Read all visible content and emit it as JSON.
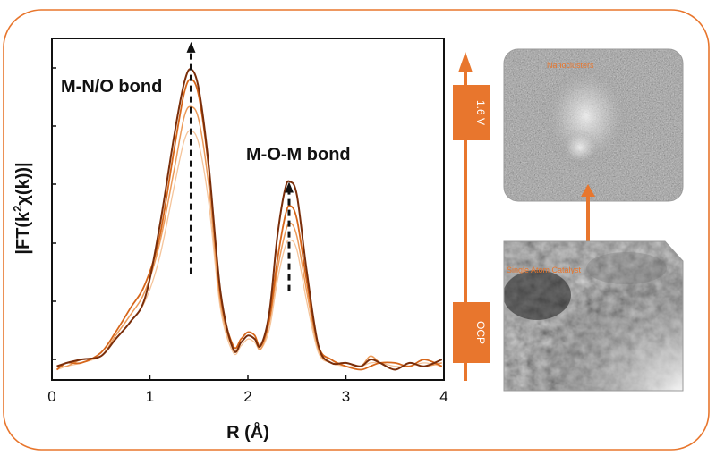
{
  "chart_data": {
    "type": "line",
    "xlabel": "R (Å)",
    "ylabel": "|FT(k²χ(k))|",
    "ylabel_parts": {
      "prefix": "FT(k",
      "sup": "2",
      "suffix": "χ(k))"
    },
    "xlim": [
      0,
      4
    ],
    "ylim": [
      0,
      1
    ],
    "xticks": [
      "0",
      "1",
      "2",
      "3",
      "4"
    ],
    "grid": false,
    "legend": "none",
    "annotations": [
      {
        "text": "M-N/O bond",
        "x": 1.42,
        "y_start": 0.31,
        "y_end": 0.99
      },
      {
        "text": "M-O-M bond",
        "x": 2.42,
        "y_start": 0.26,
        "y_end": 0.58
      }
    ],
    "series": [
      {
        "color": "#7a2e0a",
        "width": 2.0,
        "opacity": 1.0,
        "points": [
          [
            0.05,
            0.04
          ],
          [
            0.15,
            0.05
          ],
          [
            0.3,
            0.06
          ],
          [
            0.5,
            0.07
          ],
          [
            0.65,
            0.12
          ],
          [
            0.8,
            0.17
          ],
          [
            0.95,
            0.24
          ],
          [
            1.1,
            0.45
          ],
          [
            1.25,
            0.72
          ],
          [
            1.35,
            0.87
          ],
          [
            1.42,
            0.91
          ],
          [
            1.5,
            0.85
          ],
          [
            1.6,
            0.63
          ],
          [
            1.72,
            0.26
          ],
          [
            1.85,
            0.09
          ],
          [
            1.93,
            0.11
          ],
          [
            2.0,
            0.13
          ],
          [
            2.07,
            0.12
          ],
          [
            2.13,
            0.1
          ],
          [
            2.22,
            0.2
          ],
          [
            2.3,
            0.42
          ],
          [
            2.38,
            0.56
          ],
          [
            2.43,
            0.58
          ],
          [
            2.5,
            0.54
          ],
          [
            2.6,
            0.32
          ],
          [
            2.72,
            0.1
          ],
          [
            2.85,
            0.05
          ],
          [
            3.0,
            0.05
          ],
          [
            3.15,
            0.04
          ],
          [
            3.25,
            0.06
          ],
          [
            3.35,
            0.05
          ],
          [
            3.5,
            0.03
          ],
          [
            3.65,
            0.05
          ],
          [
            3.8,
            0.04
          ],
          [
            3.98,
            0.06
          ]
        ]
      },
      {
        "color": "#d6661a",
        "width": 1.8,
        "opacity": 1.0,
        "points": [
          [
            0.05,
            0.03
          ],
          [
            0.15,
            0.05
          ],
          [
            0.3,
            0.05
          ],
          [
            0.5,
            0.08
          ],
          [
            0.65,
            0.14
          ],
          [
            0.8,
            0.21
          ],
          [
            0.95,
            0.28
          ],
          [
            1.1,
            0.42
          ],
          [
            1.25,
            0.68
          ],
          [
            1.35,
            0.84
          ],
          [
            1.42,
            0.88
          ],
          [
            1.5,
            0.83
          ],
          [
            1.6,
            0.62
          ],
          [
            1.72,
            0.25
          ],
          [
            1.85,
            0.1
          ],
          [
            1.93,
            0.12
          ],
          [
            2.0,
            0.14
          ],
          [
            2.07,
            0.13
          ],
          [
            2.13,
            0.1
          ],
          [
            2.22,
            0.18
          ],
          [
            2.3,
            0.35
          ],
          [
            2.38,
            0.48
          ],
          [
            2.43,
            0.51
          ],
          [
            2.5,
            0.47
          ],
          [
            2.6,
            0.29
          ],
          [
            2.72,
            0.1
          ],
          [
            2.85,
            0.06
          ],
          [
            3.0,
            0.04
          ],
          [
            3.15,
            0.03
          ],
          [
            3.25,
            0.04
          ],
          [
            3.35,
            0.05
          ],
          [
            3.5,
            0.05
          ],
          [
            3.65,
            0.04
          ],
          [
            3.8,
            0.06
          ],
          [
            3.98,
            0.04
          ]
        ]
      },
      {
        "color": "#ec9a58",
        "width": 1.5,
        "opacity": 1.0,
        "points": [
          [
            0.05,
            0.04
          ],
          [
            0.15,
            0.04
          ],
          [
            0.3,
            0.06
          ],
          [
            0.5,
            0.07
          ],
          [
            0.65,
            0.13
          ],
          [
            0.8,
            0.19
          ],
          [
            0.95,
            0.26
          ],
          [
            1.1,
            0.4
          ],
          [
            1.25,
            0.62
          ],
          [
            1.35,
            0.77
          ],
          [
            1.42,
            0.8
          ],
          [
            1.5,
            0.76
          ],
          [
            1.6,
            0.57
          ],
          [
            1.72,
            0.23
          ],
          [
            1.85,
            0.09
          ],
          [
            1.93,
            0.11
          ],
          [
            2.0,
            0.13
          ],
          [
            2.07,
            0.12
          ],
          [
            2.13,
            0.09
          ],
          [
            2.22,
            0.17
          ],
          [
            2.3,
            0.32
          ],
          [
            2.38,
            0.43
          ],
          [
            2.43,
            0.46
          ],
          [
            2.5,
            0.42
          ],
          [
            2.6,
            0.26
          ],
          [
            2.72,
            0.09
          ],
          [
            2.85,
            0.05
          ],
          [
            3.0,
            0.05
          ],
          [
            3.15,
            0.04
          ],
          [
            3.25,
            0.07
          ],
          [
            3.35,
            0.05
          ],
          [
            3.5,
            0.03
          ],
          [
            3.65,
            0.05
          ],
          [
            3.8,
            0.04
          ],
          [
            3.98,
            0.05
          ]
        ]
      },
      {
        "color": "#f5c49a",
        "width": 1.3,
        "opacity": 1.0,
        "points": [
          [
            0.05,
            0.03
          ],
          [
            0.15,
            0.04
          ],
          [
            0.3,
            0.05
          ],
          [
            0.5,
            0.07
          ],
          [
            0.65,
            0.12
          ],
          [
            0.8,
            0.17
          ],
          [
            0.95,
            0.23
          ],
          [
            1.1,
            0.36
          ],
          [
            1.25,
            0.57
          ],
          [
            1.35,
            0.7
          ],
          [
            1.42,
            0.73
          ],
          [
            1.5,
            0.69
          ],
          [
            1.6,
            0.52
          ],
          [
            1.72,
            0.21
          ],
          [
            1.85,
            0.08
          ],
          [
            1.93,
            0.1
          ],
          [
            2.0,
            0.12
          ],
          [
            2.07,
            0.11
          ],
          [
            2.13,
            0.09
          ],
          [
            2.22,
            0.15
          ],
          [
            2.3,
            0.29
          ],
          [
            2.38,
            0.39
          ],
          [
            2.43,
            0.41
          ],
          [
            2.5,
            0.38
          ],
          [
            2.6,
            0.23
          ],
          [
            2.72,
            0.08
          ],
          [
            2.85,
            0.05
          ],
          [
            3.0,
            0.04
          ],
          [
            3.15,
            0.04
          ],
          [
            3.25,
            0.05
          ],
          [
            3.35,
            0.05
          ],
          [
            3.5,
            0.04
          ],
          [
            3.65,
            0.04
          ],
          [
            3.8,
            0.05
          ],
          [
            3.98,
            0.04
          ]
        ]
      }
    ]
  },
  "process": {
    "axis_color": "#e8762d",
    "labels": [
      "1.6 V",
      "OCP"
    ]
  },
  "micrographs": {
    "top_caption": "Nanoclusters",
    "bottom_caption": "Single Atom Catalyst",
    "caption_color": "#e8762d"
  },
  "frame": {
    "border_color": "#e8762d"
  }
}
